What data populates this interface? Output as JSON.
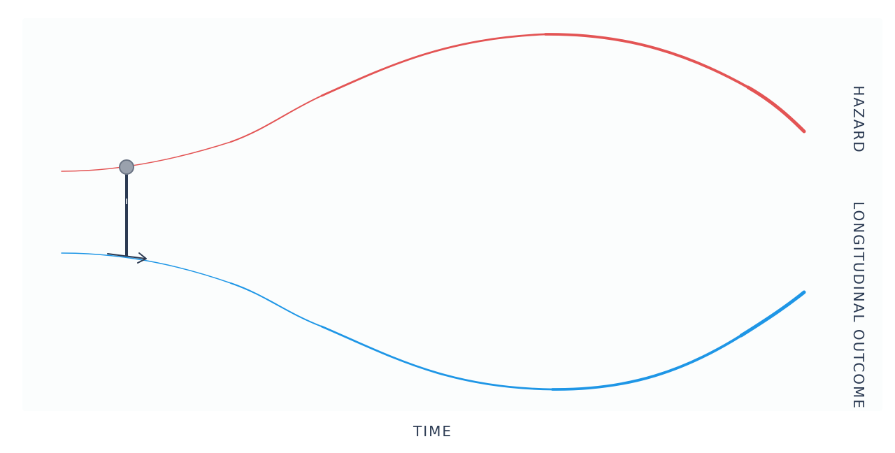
{
  "labels": {
    "x_axis": "TIME",
    "top_axis": "HAZARD",
    "bottom_axis": "LONGITUDINAL OUTCOME"
  },
  "colors": {
    "hazard_curve": "#e35454",
    "outcome_curve": "#1e96e6",
    "connector": "#2b3a52",
    "marker_fill": "#9aa1ad",
    "panel_background": "#fbfdfd"
  }
}
